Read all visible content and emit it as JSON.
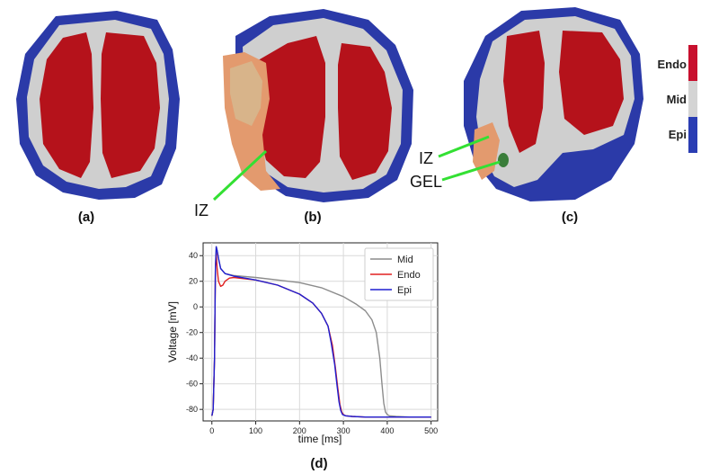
{
  "panels": {
    "a": {
      "label": "(a)"
    },
    "b": {
      "label": "(b)",
      "iz_label": "IZ"
    },
    "c": {
      "label": "(c)",
      "iz_label": "IZ",
      "gel_label": "GEL"
    },
    "d": {
      "label": "(d)"
    }
  },
  "colorbar": {
    "labels": [
      "Endo",
      "Mid",
      "Epi"
    ],
    "colors": [
      "#c8102e",
      "#d4d4d4",
      "#2a3db3"
    ]
  },
  "tissue_colors": {
    "endo": "#b5121b",
    "mid": "#cfcfcf",
    "epi": "#2b3aa8",
    "iz": "#e39a6e",
    "gel": "#3a7d3a",
    "pointer": "#33e033"
  },
  "chart_data": {
    "type": "line",
    "xlabel": "time [ms]",
    "ylabel": "Voltage [mV]",
    "xlim": [
      -20,
      515
    ],
    "ylim": [
      -89,
      50
    ],
    "xticks": [
      0,
      100,
      200,
      300,
      400,
      500
    ],
    "yticks": [
      -80,
      -60,
      -40,
      -20,
      0,
      20,
      40
    ],
    "grid": true,
    "legend_position": "top-right",
    "series": [
      {
        "name": "Mid",
        "color": "#8c8c8c",
        "x": [
          0,
          3,
          6,
          8,
          10,
          12,
          15,
          20,
          30,
          50,
          100,
          150,
          200,
          250,
          300,
          330,
          350,
          365,
          375,
          383,
          388,
          392,
          396,
          400,
          405,
          420,
          450,
          500
        ],
        "y": [
          -85,
          -80,
          -40,
          30,
          47,
          44,
          38,
          30,
          26,
          24.5,
          23,
          21,
          19,
          15,
          8,
          2,
          -3,
          -10,
          -20,
          -40,
          -60,
          -75,
          -82,
          -84,
          -85,
          -85.5,
          -86,
          -86
        ]
      },
      {
        "name": "Endo",
        "color": "#e02020",
        "x": [
          0,
          3,
          6,
          8,
          10,
          12,
          15,
          20,
          25,
          30,
          40,
          50,
          100,
          150,
          200,
          230,
          250,
          265,
          275,
          282,
          287,
          292,
          296,
          300,
          305,
          320,
          350,
          400,
          500
        ],
        "y": [
          -85,
          -80,
          -40,
          30,
          42,
          30,
          20,
          16,
          17,
          20,
          22.5,
          23,
          21,
          17,
          10,
          3,
          -5,
          -15,
          -30,
          -48,
          -63,
          -76,
          -82,
          -84,
          -85,
          -85.5,
          -86,
          -86,
          -86
        ]
      },
      {
        "name": "Epi",
        "color": "#1f1fd0",
        "x": [
          0,
          3,
          6,
          8,
          10,
          12,
          15,
          20,
          30,
          50,
          100,
          150,
          200,
          230,
          250,
          265,
          272,
          280,
          285,
          290,
          294,
          298,
          305,
          320,
          350,
          400,
          500
        ],
        "y": [
          -85,
          -80,
          -40,
          30,
          47,
          44,
          38,
          30,
          26,
          24,
          21,
          17,
          10,
          3,
          -5,
          -15,
          -28,
          -45,
          -60,
          -74,
          -81,
          -84,
          -85,
          -85.5,
          -86,
          -86,
          -86
        ]
      }
    ]
  }
}
